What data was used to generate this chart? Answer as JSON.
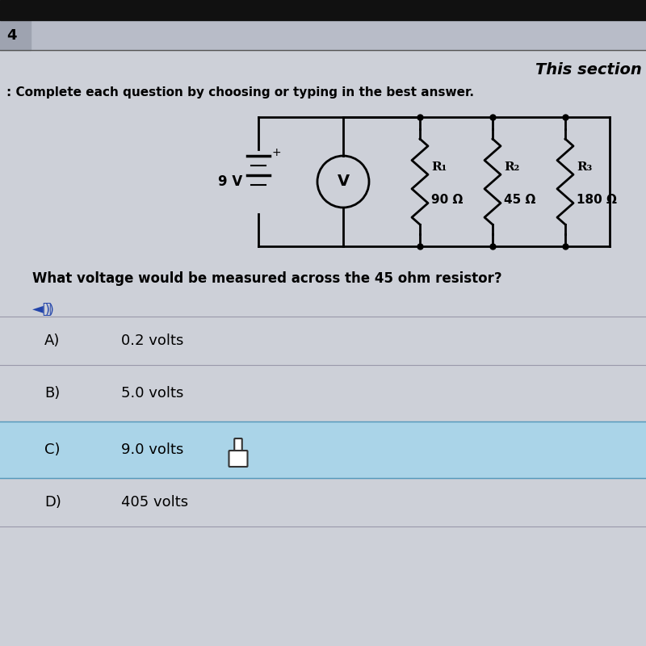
{
  "tab_label": "4",
  "section_text": "This section",
  "instruction_text": ": Complete each question by choosing or typing in the best answer.",
  "question_text": "What voltage would be measured across the 45 ohm resistor?",
  "choices": [
    {
      "label": "A)",
      "text": "0.2 volts",
      "highlighted": false
    },
    {
      "label": "B)",
      "text": "5.0 volts",
      "highlighted": false
    },
    {
      "label": "C)",
      "text": "9.0 volts",
      "highlighted": true
    },
    {
      "label": "D)",
      "text": "405 volts",
      "highlighted": false
    }
  ],
  "bg_color": "#cdd0d8",
  "highlight_color": "#aad4e8",
  "top_bar_color": "#111111",
  "tab_bar_color": "#b8bcc8",
  "tab_bg": "#9ea3b0",
  "circuit": {
    "voltage": "9 V",
    "R1_label": "R₁",
    "R1_val": "90 Ω",
    "R2_label": "R₂",
    "R2_val": "45 Ω",
    "R3_label": "R₃",
    "R3_val": "180 Ω"
  }
}
